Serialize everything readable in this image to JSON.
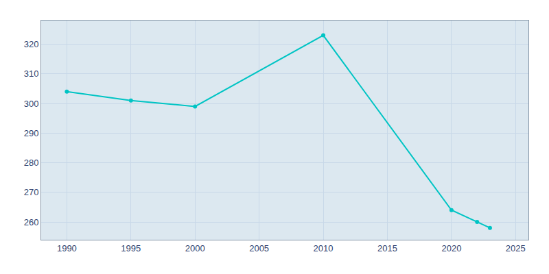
{
  "chart_data": {
    "type": "line",
    "x": [
      1990,
      1995,
      2000,
      2010,
      2020,
      2022,
      2023
    ],
    "values": [
      304,
      301,
      299,
      323,
      264,
      260,
      258
    ],
    "color": "#00C4C4",
    "marker": "circle",
    "xlim": [
      1988,
      2026
    ],
    "ylim": [
      254,
      328
    ],
    "xticks": [
      1990,
      1995,
      2000,
      2005,
      2010,
      2015,
      2020,
      2025
    ],
    "yticks": [
      260,
      270,
      280,
      290,
      300,
      310,
      320
    ],
    "grid": true
  }
}
